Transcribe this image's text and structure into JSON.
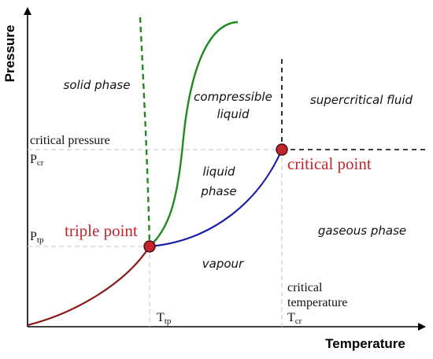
{
  "axes": {
    "x_title": "Temperature",
    "y_title": "Pressure"
  },
  "regions": {
    "solid": "solid phase",
    "compressible_line1": "compressible",
    "compressible_line2": "liquid",
    "supercritical": "supercritical fluid",
    "liquid_line1": "liquid",
    "liquid_line2": "phase",
    "vapour": "vapour",
    "gaseous": "gaseous phase"
  },
  "annotations": {
    "critical_pressure": "critical pressure",
    "p_cr_main": "P",
    "p_cr_sub": "cr",
    "p_tp_main": "P",
    "p_tp_sub": "tp",
    "t_tp_main": "T",
    "t_tp_sub": "tp",
    "critical_temperature_line1": "critical",
    "critical_temperature_line2": "temperature",
    "t_cr_main": "T",
    "t_cr_sub": "cr"
  },
  "points": {
    "triple": "triple point",
    "critical": "critical point"
  },
  "colors": {
    "sublimation": "#8b1a1a",
    "melting": "#1f8a1f",
    "vaporization": "#1a1aa8",
    "point_fill": "#c0262b",
    "label_red": "#c0262b"
  }
}
